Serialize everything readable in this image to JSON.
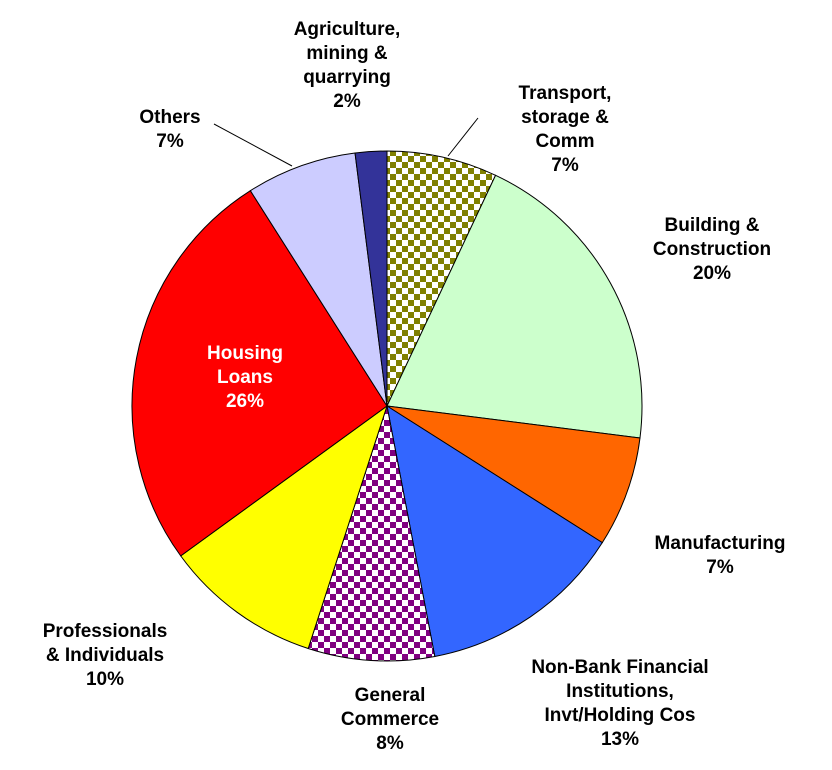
{
  "chart_data": {
    "type": "pie",
    "categories": [
      "Transport,\nstorage &\nComm",
      "Building &\nConstruction",
      "Manufacturing",
      "Non-Bank Financial\nInstitutions,\nInvt/Holding Cos",
      "General\nCommerce",
      "Professionals\n& Individuals",
      "Housing\nLoans",
      "Others",
      "Agriculture,\nmining &\nquarrying"
    ],
    "values": [
      7,
      20,
      7,
      13,
      8,
      10,
      26,
      7,
      2
    ],
    "value_labels": [
      "7%",
      "20%",
      "7%",
      "13%",
      "8%",
      "10%",
      "26%",
      "7%",
      "2%"
    ],
    "colors": [
      "#808000",
      "#ccffcc",
      "#ff6600",
      "#3366ff",
      "#800080",
      "#ffff00",
      "#ff0000",
      "#ccccff",
      "#333399"
    ],
    "patterns": [
      "checker",
      null,
      null,
      null,
      "checker",
      null,
      null,
      null,
      null
    ]
  }
}
